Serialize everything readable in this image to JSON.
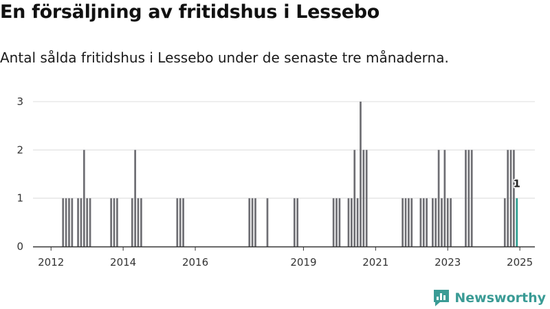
{
  "header": {
    "title": "En försäljning av fritidshus i Lessebo",
    "subtitle": "Antal sålda fritidshus i Lessebo under de senaste tre månaderna."
  },
  "brand": {
    "name": "Newsworthy",
    "color": "#3a9b95"
  },
  "colors": {
    "bar": "#6e6e73",
    "highlight": "#2a9d8f",
    "grid": "#dcdcdc",
    "axis": "#333333"
  },
  "chart_data": {
    "type": "bar",
    "x_unit": "month",
    "xlim": [
      "2011-07",
      "2025-06"
    ],
    "ylim": [
      0,
      3
    ],
    "y_ticks": [
      0,
      1,
      2,
      3
    ],
    "x_ticks": [
      "2012",
      "2014",
      "2016",
      "2019",
      "2021",
      "2023",
      "2025"
    ],
    "grid": true,
    "series": [
      {
        "points": [
          [
            "2012-05",
            1
          ],
          [
            "2012-06",
            1
          ],
          [
            "2012-07",
            1
          ],
          [
            "2012-08",
            1
          ],
          [
            "2012-10",
            1
          ],
          [
            "2012-11",
            1
          ],
          [
            "2012-12",
            2
          ],
          [
            "2013-01",
            1
          ],
          [
            "2013-02",
            1
          ],
          [
            "2013-09",
            1
          ],
          [
            "2013-10",
            1
          ],
          [
            "2013-11",
            1
          ],
          [
            "2014-04",
            1
          ],
          [
            "2014-05",
            2
          ],
          [
            "2014-06",
            1
          ],
          [
            "2014-07",
            1
          ],
          [
            "2015-07",
            1
          ],
          [
            "2015-08",
            1
          ],
          [
            "2015-09",
            1
          ],
          [
            "2017-07",
            1
          ],
          [
            "2017-08",
            1
          ],
          [
            "2017-09",
            1
          ],
          [
            "2018-01",
            1
          ],
          [
            "2018-10",
            1
          ],
          [
            "2018-11",
            1
          ],
          [
            "2019-11",
            1
          ],
          [
            "2019-12",
            1
          ],
          [
            "2020-01",
            1
          ],
          [
            "2020-04",
            1
          ],
          [
            "2020-05",
            1
          ],
          [
            "2020-06",
            2
          ],
          [
            "2020-07",
            1
          ],
          [
            "2020-08",
            3
          ],
          [
            "2020-09",
            2
          ],
          [
            "2020-10",
            2
          ],
          [
            "2021-10",
            1
          ],
          [
            "2021-11",
            1
          ],
          [
            "2021-12",
            1
          ],
          [
            "2022-01",
            1
          ],
          [
            "2022-04",
            1
          ],
          [
            "2022-05",
            1
          ],
          [
            "2022-06",
            1
          ],
          [
            "2022-08",
            1
          ],
          [
            "2022-09",
            1
          ],
          [
            "2022-10",
            2
          ],
          [
            "2022-11",
            1
          ],
          [
            "2022-12",
            2
          ],
          [
            "2023-01",
            1
          ],
          [
            "2023-02",
            1
          ],
          [
            "2023-07",
            2
          ],
          [
            "2023-08",
            2
          ],
          [
            "2023-09",
            2
          ],
          [
            "2024-08",
            1
          ],
          [
            "2024-09",
            2
          ],
          [
            "2024-10",
            2
          ],
          [
            "2024-11",
            2
          ],
          [
            "2024-12",
            1
          ]
        ],
        "highlight": {
          "x": "2024-12",
          "value": 1,
          "label": "1"
        }
      }
    ]
  }
}
